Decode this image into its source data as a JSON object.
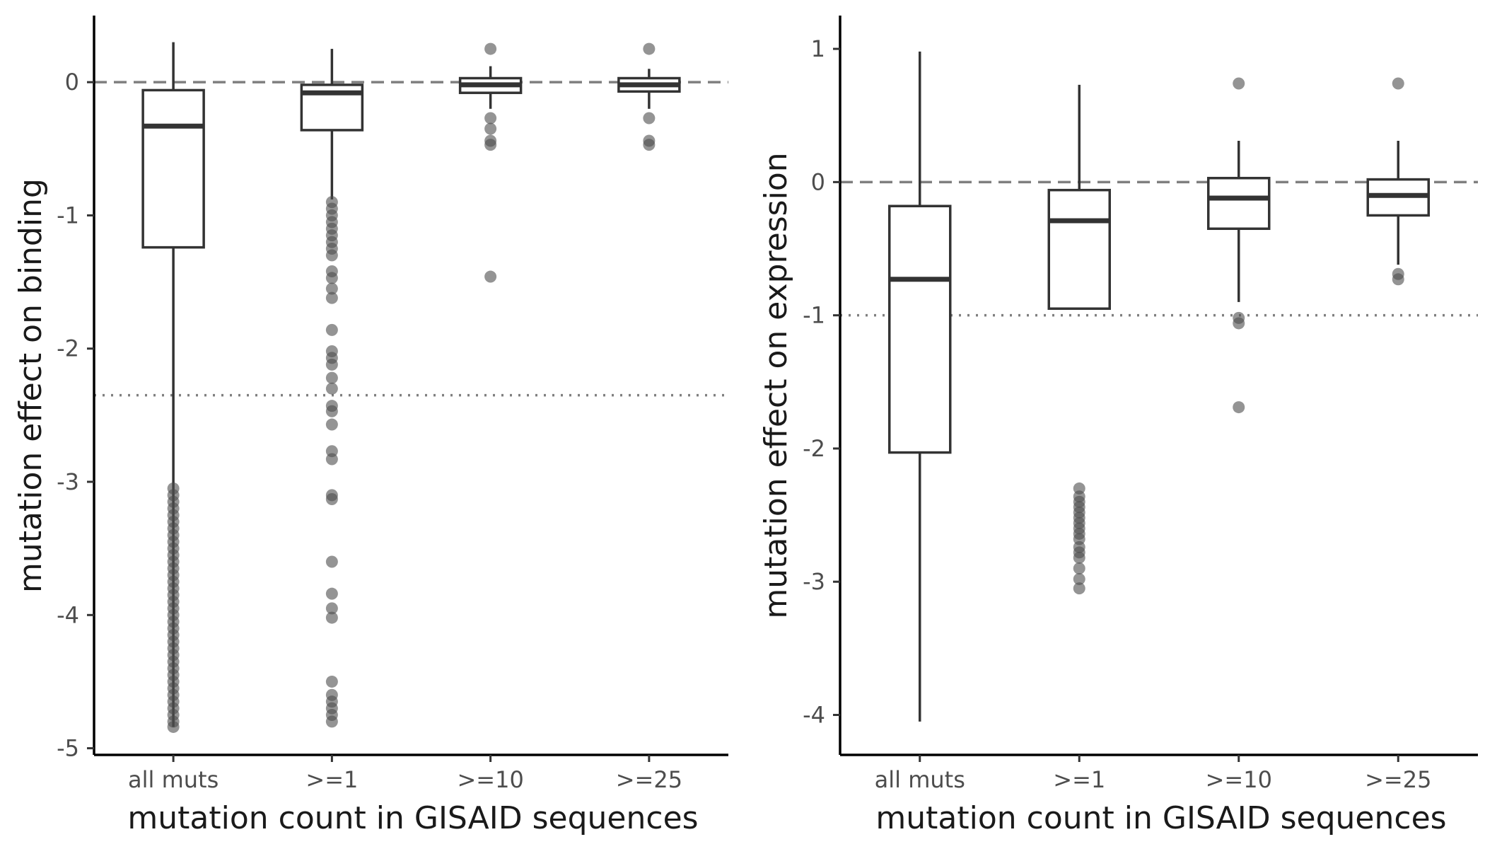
{
  "chart_data": [
    {
      "type": "box",
      "xlabel": "mutation count in GISAID sequences",
      "ylabel": "mutation effect on binding",
      "categories": [
        "all muts",
        ">=1",
        ">=10",
        ">=25"
      ],
      "ylim": [
        -5.05,
        0.5
      ],
      "yticks": [
        0,
        -1,
        -2,
        -3,
        -4,
        -5
      ],
      "reference_lines": [
        {
          "style": "dashed",
          "y": 0
        },
        {
          "style": "dotted",
          "y": -2.35
        }
      ],
      "boxes": [
        {
          "category": "all muts",
          "whisker_low": -4.84,
          "q1": -1.24,
          "median": -0.33,
          "q3": -0.06,
          "whisker_high": 0.3,
          "outliers": [
            -3.05,
            -3.1,
            -3.15,
            -3.2,
            -3.25,
            -3.3,
            -3.35,
            -3.4,
            -3.45,
            -3.5,
            -3.55,
            -3.6,
            -3.65,
            -3.7,
            -3.75,
            -3.8,
            -3.85,
            -3.9,
            -3.95,
            -4.0,
            -4.05,
            -4.1,
            -4.15,
            -4.2,
            -4.25,
            -4.3,
            -4.35,
            -4.4,
            -4.45,
            -4.5,
            -4.55,
            -4.6,
            -4.65,
            -4.7,
            -4.75,
            -4.8,
            -4.84
          ]
        },
        {
          "category": ">=1",
          "whisker_low": -0.88,
          "q1": -0.36,
          "median": -0.08,
          "q3": -0.02,
          "whisker_high": 0.25,
          "outliers": [
            -0.9,
            -0.95,
            -1.0,
            -1.05,
            -1.1,
            -1.15,
            -1.2,
            -1.25,
            -1.3,
            -1.42,
            -1.47,
            -1.55,
            -1.62,
            -1.86,
            -2.02,
            -2.07,
            -2.12,
            -2.22,
            -2.3,
            -2.43,
            -2.47,
            -2.57,
            -2.77,
            -2.83,
            -3.1,
            -3.13,
            -3.6,
            -3.84,
            -3.95,
            -4.02,
            -4.5,
            -4.6,
            -4.65,
            -4.7,
            -4.75,
            -4.8
          ]
        },
        {
          "category": ">=10",
          "whisker_low": -0.2,
          "q1": -0.08,
          "median": -0.02,
          "q3": 0.03,
          "whisker_high": 0.12,
          "outliers": [
            0.25,
            -0.27,
            -0.35,
            -0.44,
            -0.47,
            -1.46
          ]
        },
        {
          "category": ">=25",
          "whisker_low": -0.2,
          "q1": -0.07,
          "median": -0.02,
          "q3": 0.03,
          "whisker_high": 0.1,
          "outliers": [
            0.25,
            -0.27,
            -0.44,
            -0.47
          ]
        }
      ]
    },
    {
      "type": "box",
      "xlabel": "mutation count in GISAID sequences",
      "ylabel": "mutation effect on expression",
      "categories": [
        "all muts",
        ">=1",
        ">=10",
        ">=25"
      ],
      "ylim": [
        -4.3,
        1.25
      ],
      "yticks": [
        1,
        0,
        -1,
        -2,
        -3,
        -4
      ],
      "reference_lines": [
        {
          "style": "dashed",
          "y": 0
        },
        {
          "style": "dotted",
          "y": -1
        }
      ],
      "boxes": [
        {
          "category": "all muts",
          "whisker_low": -4.05,
          "q1": -2.03,
          "median": -0.73,
          "q3": -0.18,
          "whisker_high": 0.98,
          "outliers": []
        },
        {
          "category": ">=1",
          "whisker_low": -0.95,
          "q1": -0.95,
          "median": -0.29,
          "q3": -0.06,
          "whisker_high": 0.73,
          "outliers": [
            -2.3,
            -2.36,
            -2.4,
            -2.44,
            -2.48,
            -2.52,
            -2.56,
            -2.6,
            -2.64,
            -2.68,
            -2.74,
            -2.78,
            -2.82,
            -2.9,
            -2.98,
            -3.05
          ]
        },
        {
          "category": ">=10",
          "whisker_low": -0.9,
          "q1": -0.35,
          "median": -0.12,
          "q3": 0.03,
          "whisker_high": 0.31,
          "outliers": [
            0.74,
            -1.02,
            -1.06,
            -1.69
          ]
        },
        {
          "category": ">=25",
          "whisker_low": -0.62,
          "q1": -0.25,
          "median": -0.1,
          "q3": 0.02,
          "whisker_high": 0.31,
          "outliers": [
            0.74,
            -0.69,
            -0.73
          ]
        }
      ]
    }
  ]
}
